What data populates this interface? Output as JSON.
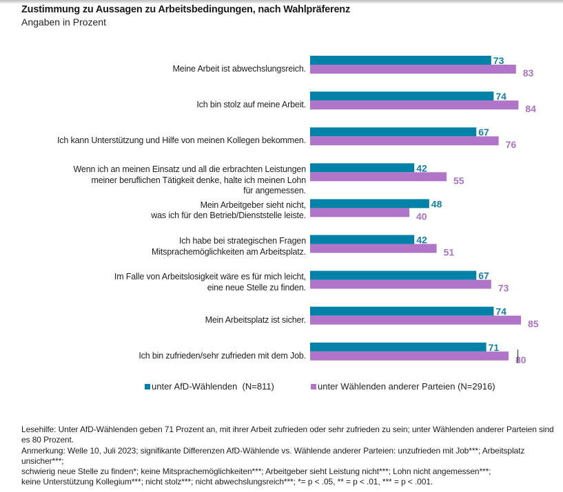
{
  "header": {
    "title": "Zustimmung zu Aussagen zu Arbeitsbedingungen, nach Wahlpräferenz",
    "subtitle": "Angaben in Prozent"
  },
  "chart_data": {
    "type": "bar",
    "orientation": "horizontal",
    "title": "Zustimmung zu Aussagen zu Arbeitsbedingungen, nach Wahlpräferenz",
    "subtitle": "Angaben in Prozent",
    "xlabel": "",
    "ylabel": "",
    "xlim": [
      0,
      100
    ],
    "grid": false,
    "legend_position": "bottom",
    "categories": [
      [
        "Meine Arbeit ist abwechslungsreich."
      ],
      [
        "Ich bin stolz auf meine Arbeit."
      ],
      [
        "Ich kann Unterstützung und Hilfe von meinen Kollegen bekommen."
      ],
      [
        "Wenn ich an meinen Einsatz und all die erbrachten Leistungen",
        "meiner beruflichen Tätigkeit denke, halte ich meinen Lohn",
        "für angemessen."
      ],
      [
        "Mein Arbeitgeber sieht nicht,",
        "was ich für den Betrieb/Dienststelle leiste."
      ],
      [
        "Ich habe bei strategischen Fragen",
        "Mitsprachemöglichkeiten am Arbeitsplatz."
      ],
      [
        "Im Falle von Arbeitslosigkeit wäre es für mich leicht,",
        "eine neue Stelle zu finden."
      ],
      [
        "Mein Arbeitsplatz ist sicher."
      ],
      [
        "Ich bin zufrieden/sehr zufrieden mit dem Job."
      ]
    ],
    "series": [
      {
        "name": "unter AfD-Wählenden  (N=811)",
        "color": "#0081a8",
        "label_color": "#137fa5",
        "values": [
          73,
          74,
          67,
          42,
          48,
          42,
          67,
          74,
          71
        ]
      },
      {
        "name": "unter Wählenden anderer Parteien (N=2916)",
        "color": "#b075c9",
        "label_color": "#a872c6",
        "values": [
          83,
          84,
          76,
          55,
          40,
          51,
          73,
          85,
          80
        ]
      }
    ]
  },
  "notes": {
    "reading_aid": "Lesehilfe: Unter AfD-Wählenden geben 71 Prozent an, mit ihrer Arbeit zufrieden oder sehr zufrieden zu sein; unter Wählenden anderer Parteien sind es 80 Prozent.",
    "remark_lines": [
      "Anmerkung: Welle 10, Juli 2023; signifikante Differenzen AfD-Wählende vs. Wählende anderer Parteien: unzufrieden mit Job***; Arbeitsplatz unsicher***;",
      "schwierig neue Stelle zu finden*; keine Mitsprachemöglichkeiten***; Arbeitgeber sieht Leistung nicht***; Lohn nicht angemessen***;",
      "keine Unterstützung Kollegium***; nicht stolz***; nicht abwechslungsreich***; *= p < .05, ** = p < .01, *** = p < .001."
    ]
  }
}
